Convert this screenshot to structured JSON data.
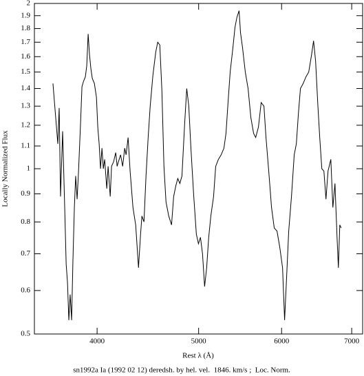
{
  "chart_data": {
    "type": "line",
    "xlabel": "Rest λ (Å)",
    "ylabel": "Locally Normalized Flux",
    "caption": "sn1992a Ia (1992 02 12) deredsh. by hel. vel.  1846. km/s ;  Loc. Norm.",
    "xlog": true,
    "ylog": true,
    "color": "#000000",
    "xlim": [
      3485,
      7170
    ],
    "ylim": [
      0.5,
      2
    ],
    "xticks": [
      4000,
      5000,
      6000,
      7000
    ],
    "yticks": [
      0.5,
      0.6,
      0.7,
      0.8,
      0.9,
      1,
      1.1,
      1.2,
      1.3,
      1.4,
      1.5,
      1.6,
      1.7,
      1.8,
      1.9,
      2
    ],
    "x": [
      3630,
      3669,
      3680,
      3691,
      3708,
      3725,
      3737,
      3748,
      3759,
      3770,
      3782,
      3793,
      3805,
      3816,
      3828,
      3840,
      3857,
      3869,
      3881,
      3898,
      3910,
      3922,
      3934,
      3946,
      3958,
      3976,
      3994,
      4006,
      4018,
      4030,
      4043,
      4055,
      4067,
      4086,
      4098,
      4117,
      4129,
      4148,
      4167,
      4180,
      4192,
      4212,
      4231,
      4250,
      4263,
      4282,
      4301,
      4328,
      4354,
      4381,
      4401,
      4414,
      4434,
      4454,
      4475,
      4495,
      4522,
      4550,
      4570,
      4591,
      4612,
      4633,
      4654,
      4682,
      4711,
      4733,
      4755,
      4776,
      4798,
      4820,
      4849,
      4871,
      4893,
      4916,
      4945,
      4975,
      4998,
      5020,
      5043,
      5066,
      5089,
      5112,
      5136,
      5167,
      5191,
      5222,
      5254,
      5286,
      5310,
      5334,
      5359,
      5391,
      5416,
      5440,
      5465,
      5482,
      5507,
      5540,
      5574,
      5608,
      5642,
      5668,
      5702,
      5737,
      5772,
      5798,
      5833,
      5869,
      5904,
      5940,
      5976,
      6013,
      6040,
      6068,
      6095,
      6132,
      6169,
      6198,
      6226,
      6254,
      6292,
      6330,
      6369,
      6408,
      6437,
      6466,
      6496,
      6525,
      6555,
      6585,
      6615,
      6645,
      6686,
      6716,
      6747,
      6778,
      6798,
      6819,
      6840
    ],
    "values": [
      1.43,
      1.11,
      1.29,
      0.89,
      1.17,
      0.85,
      0.67,
      0.62,
      0.53,
      0.59,
      0.53,
      0.68,
      0.85,
      0.97,
      0.88,
      0.99,
      1.21,
      1.41,
      1.44,
      1.47,
      1.54,
      1.76,
      1.61,
      1.52,
      1.46,
      1.43,
      1.35,
      1.19,
      1.11,
      1.0,
      1.09,
      1.0,
      1.04,
      0.92,
      1.01,
      0.89,
      1.01,
      1.03,
      1.07,
      1.01,
      1.03,
      1.06,
      1.01,
      1.09,
      1.06,
      1.14,
      0.99,
      0.85,
      0.79,
      0.66,
      0.76,
      0.82,
      0.8,
      0.97,
      1.14,
      1.3,
      1.48,
      1.63,
      1.7,
      1.68,
      1.39,
      1.01,
      0.87,
      0.82,
      0.79,
      0.89,
      0.93,
      0.96,
      0.94,
      0.97,
      1.21,
      1.4,
      1.3,
      1.09,
      0.9,
      0.76,
      0.73,
      0.75,
      0.7,
      0.61,
      0.66,
      0.75,
      0.82,
      0.89,
      1.01,
      1.04,
      1.06,
      1.09,
      1.16,
      1.32,
      1.5,
      1.66,
      1.81,
      1.89,
      1.94,
      1.77,
      1.66,
      1.5,
      1.4,
      1.24,
      1.16,
      1.14,
      1.19,
      1.32,
      1.3,
      1.14,
      0.99,
      0.85,
      0.78,
      0.77,
      0.72,
      0.66,
      0.53,
      0.64,
      0.77,
      0.89,
      1.06,
      1.11,
      1.26,
      1.4,
      1.43,
      1.47,
      1.5,
      1.61,
      1.71,
      1.57,
      1.32,
      1.14,
      1.0,
      0.99,
      0.88,
      0.99,
      1.04,
      0.85,
      0.94,
      0.75,
      0.66,
      0.79,
      0.78
    ]
  }
}
